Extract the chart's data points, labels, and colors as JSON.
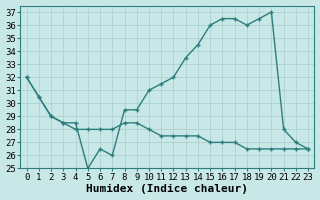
{
  "xlabel": "Humidex (Indice chaleur)",
  "xlim": [
    -0.5,
    23.5
  ],
  "ylim": [
    25,
    37.5
  ],
  "yticks": [
    25,
    26,
    27,
    28,
    29,
    30,
    31,
    32,
    33,
    34,
    35,
    36,
    37
  ],
  "xticks": [
    0,
    1,
    2,
    3,
    4,
    5,
    6,
    7,
    8,
    9,
    10,
    11,
    12,
    13,
    14,
    15,
    16,
    17,
    18,
    19,
    20,
    21,
    22,
    23
  ],
  "line1_x": [
    0,
    1,
    2,
    3,
    4,
    5,
    6,
    7,
    8,
    9,
    10,
    11,
    12,
    13,
    14,
    15,
    16,
    17,
    18,
    19,
    20,
    21,
    22,
    23
  ],
  "line1_y": [
    32.0,
    30.5,
    29.0,
    28.5,
    28.5,
    25.0,
    26.5,
    26.0,
    29.5,
    29.5,
    31.0,
    31.5,
    32.0,
    33.5,
    34.5,
    36.0,
    36.5,
    36.5,
    36.0,
    36.5,
    37.0,
    28.0,
    27.0,
    26.5
  ],
  "line2_x": [
    0,
    1,
    2,
    3,
    4,
    5,
    6,
    7,
    8,
    9,
    10,
    11,
    12,
    13,
    14,
    15,
    16,
    17,
    18,
    19,
    20,
    21,
    22,
    23
  ],
  "line2_y": [
    32.0,
    30.5,
    29.0,
    28.5,
    28.0,
    28.0,
    28.0,
    28.0,
    28.5,
    28.5,
    28.0,
    27.5,
    27.5,
    27.5,
    27.5,
    27.0,
    27.0,
    27.0,
    26.5,
    26.5,
    26.5,
    26.5,
    26.5,
    26.5
  ],
  "line_color": "#2e7d7d",
  "bg_color": "#c8e8e8",
  "grid_color": "#aacccc",
  "xlabel_fontsize": 8,
  "tick_fontsize": 6.5
}
